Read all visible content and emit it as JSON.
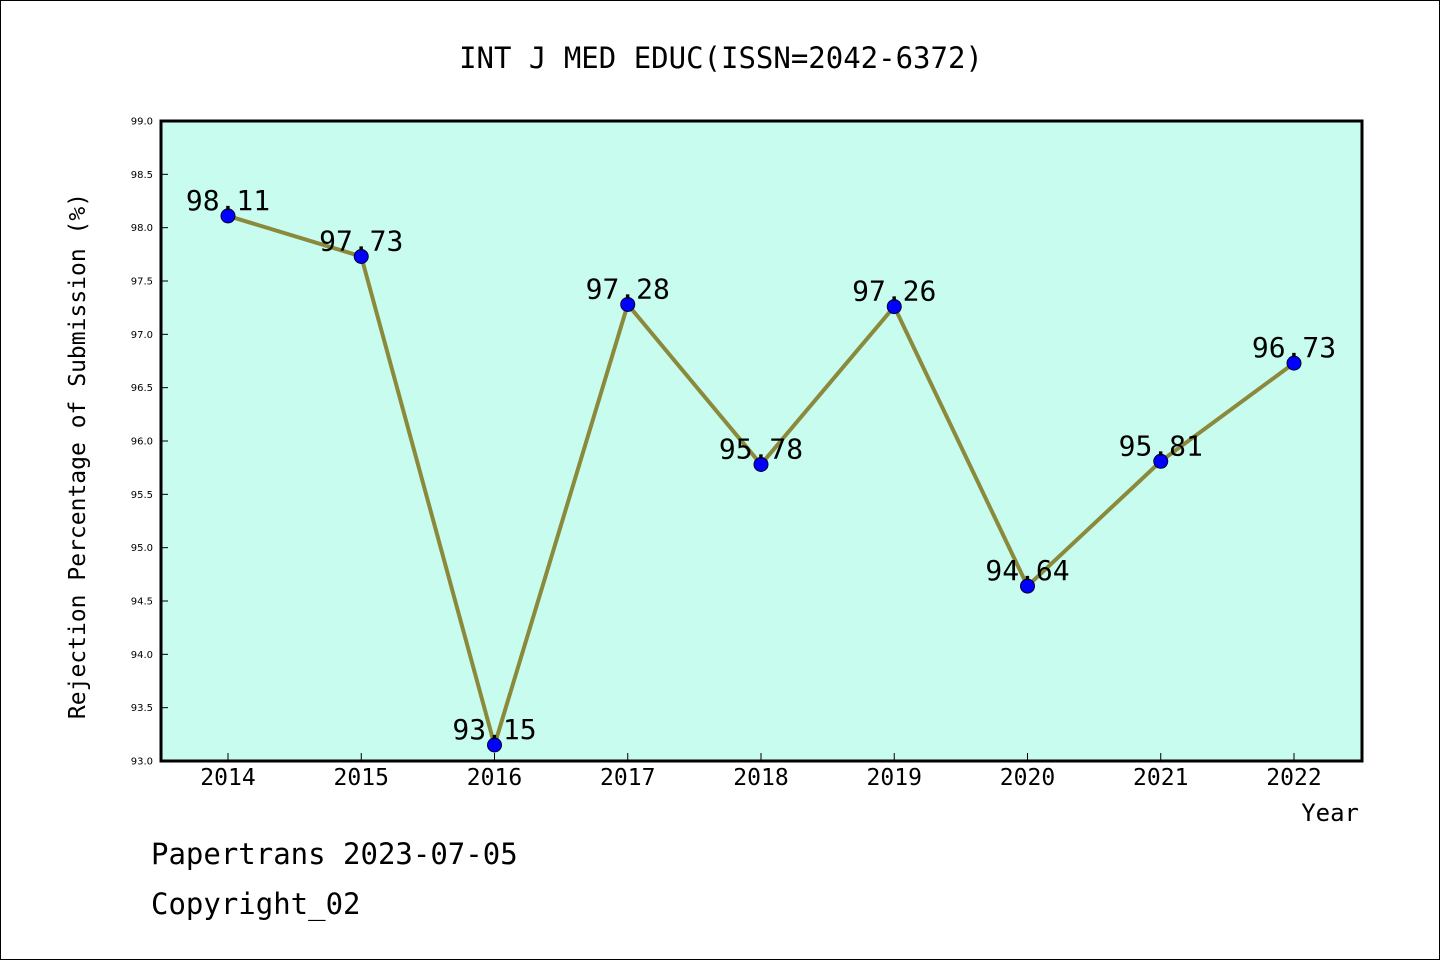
{
  "chart_data": {
    "type": "line",
    "title": "INT J MED EDUC(ISSN=2042-6372)",
    "xlabel": "Year",
    "ylabel": "Rejection Percentage of Submission (%)",
    "x": [
      "2014",
      "2015",
      "2016",
      "2017",
      "2018",
      "2019",
      "2020",
      "2021",
      "2022"
    ],
    "series": [
      {
        "values": [
          98.11,
          97.73,
          93.15,
          97.28,
          95.78,
          97.26,
          94.64,
          95.81,
          96.73
        ]
      }
    ],
    "data_labels": [
      "98.11",
      "97.73",
      "93.15",
      "97.28",
      "95.78",
      "97.26",
      "94.64",
      "95.81",
      "96.73"
    ],
    "ylim": [
      93.0,
      99.0
    ],
    "yticks": [
      "93.0",
      "93.5",
      "94.0",
      "94.5",
      "95.0",
      "95.5",
      "96.0",
      "96.5",
      "97.0",
      "97.5",
      "98.0",
      "98.5",
      "99.0"
    ],
    "grid": false,
    "colors": {
      "plot_background": "#c8fcee",
      "line": "#8b8a3c",
      "marker": "#0000ff"
    }
  },
  "footer": {
    "line1": "Papertrans 2023-07-05",
    "line2": "Copyright_02"
  }
}
